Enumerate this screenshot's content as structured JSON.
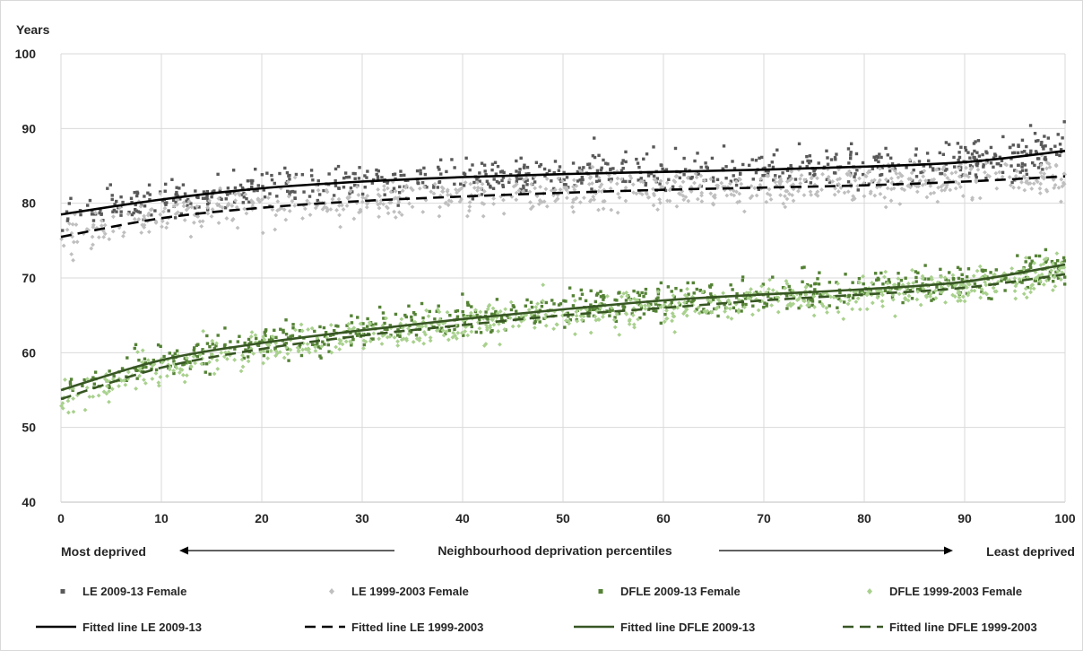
{
  "chart_data": {
    "type": "scatter",
    "title": "",
    "ylabel": "Years",
    "xlabel": "Neighbourhood deprivation percentiles",
    "xlabel_left": "Most deprived",
    "xlabel_right": "Least deprived",
    "xlim": [
      0,
      100
    ],
    "ylim": [
      40,
      100
    ],
    "x_ticks": [
      "0",
      "10",
      "20",
      "30",
      "40",
      "50",
      "60",
      "70",
      "80",
      "90",
      "100"
    ],
    "y_ticks": [
      "40",
      "50",
      "60",
      "70",
      "80",
      "90",
      "100"
    ],
    "grid": true,
    "legend_position": "bottom",
    "series": [
      {
        "name": "LE 2009-13 Female",
        "kind": "points",
        "marker": "square",
        "color": "#595959",
        "x": [
          0,
          10,
          20,
          30,
          40,
          50,
          60,
          70,
          80,
          90,
          100
        ],
        "y": [
          78.5,
          80.5,
          82.0,
          82.9,
          83.5,
          83.9,
          84.2,
          84.5,
          84.9,
          85.5,
          87.0
        ],
        "spread": 2.2
      },
      {
        "name": "LE 1999-2003 Female",
        "kind": "points",
        "marker": "diamond",
        "color": "#bfbfbf",
        "x": [
          0,
          10,
          20,
          30,
          40,
          50,
          60,
          70,
          80,
          90,
          100
        ],
        "y": [
          75.5,
          78.0,
          79.4,
          80.3,
          80.9,
          81.4,
          81.8,
          82.1,
          82.4,
          82.9,
          83.6
        ],
        "spread": 2.2
      },
      {
        "name": "DFLE 2009-13 Female",
        "kind": "points",
        "marker": "square",
        "color": "#548235",
        "x": [
          0,
          10,
          20,
          30,
          40,
          50,
          60,
          70,
          80,
          90,
          100
        ],
        "y": [
          55.0,
          59.0,
          61.3,
          63.0,
          64.5,
          65.8,
          67.0,
          67.8,
          68.5,
          69.5,
          71.8
        ],
        "spread": 2.0
      },
      {
        "name": "DFLE 1999-2003 Female",
        "kind": "points",
        "marker": "diamond",
        "color": "#a9d18e",
        "x": [
          0,
          10,
          20,
          30,
          40,
          50,
          60,
          70,
          80,
          90,
          100
        ],
        "y": [
          53.8,
          58.0,
          60.5,
          62.3,
          63.7,
          65.0,
          66.0,
          67.0,
          67.8,
          68.7,
          70.5
        ],
        "spread": 2.0
      },
      {
        "name": "Fitted line LE 2009-13",
        "kind": "line",
        "dash": "solid",
        "color": "#000000",
        "x": [
          0,
          10,
          20,
          30,
          40,
          50,
          60,
          70,
          80,
          90,
          100
        ],
        "y": [
          78.5,
          80.5,
          82.0,
          82.9,
          83.5,
          83.9,
          84.2,
          84.5,
          84.9,
          85.5,
          87.0
        ]
      },
      {
        "name": "Fitted line LE 1999-2003",
        "kind": "line",
        "dash": "dashed",
        "color": "#000000",
        "x": [
          0,
          10,
          20,
          30,
          40,
          50,
          60,
          70,
          80,
          90,
          100
        ],
        "y": [
          75.5,
          78.0,
          79.4,
          80.3,
          80.9,
          81.4,
          81.8,
          82.1,
          82.4,
          82.9,
          83.6
        ]
      },
      {
        "name": "Fitted line DFLE 2009-13",
        "kind": "line",
        "dash": "solid",
        "color": "#375623",
        "x": [
          0,
          10,
          20,
          30,
          40,
          50,
          60,
          70,
          80,
          90,
          100
        ],
        "y": [
          55.0,
          59.0,
          61.3,
          63.0,
          64.5,
          65.8,
          67.0,
          67.8,
          68.5,
          69.5,
          71.8
        ]
      },
      {
        "name": "Fitted line DFLE 1999-2003",
        "kind": "line",
        "dash": "dashed",
        "color": "#375623",
        "x": [
          0,
          10,
          20,
          30,
          40,
          50,
          60,
          70,
          80,
          90,
          100
        ],
        "y": [
          53.8,
          58.0,
          60.5,
          62.3,
          63.7,
          65.0,
          66.0,
          67.0,
          67.8,
          68.7,
          70.5
        ]
      }
    ]
  }
}
